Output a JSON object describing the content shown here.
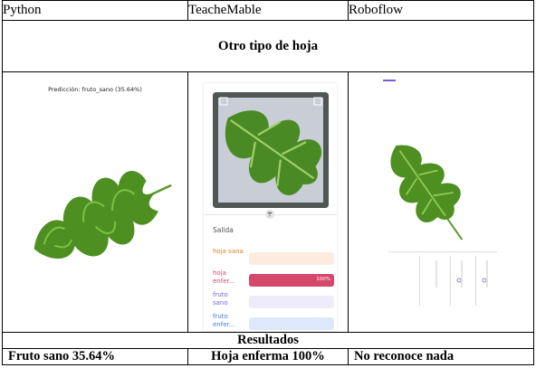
{
  "columns": [
    "Python",
    "TeacheMable",
    "Roboflow"
  ],
  "section_title": "Otro tipo de hoja",
  "python_panel": {
    "prediction_text": "Predicción: fruto_sano (35.64%)"
  },
  "teachable_panel": {
    "output_heading": "Salida",
    "classes": [
      {
        "label": "hoja sana",
        "value": 0,
        "pct_text": "",
        "color": "#d9822b",
        "track": "#fdebe0"
      },
      {
        "label": "hoja enfer...",
        "value": 1.0,
        "pct_text": "100%",
        "color": "#d4496a",
        "track": "#fbe1e7"
      },
      {
        "label": "fruto sano",
        "value": 0,
        "pct_text": "",
        "color": "#7b5fd6",
        "track": "#eeebfb"
      },
      {
        "label": "fruto enfer...",
        "value": 0,
        "pct_text": "",
        "color": "#3f7fd6",
        "track": "#dde9fb"
      }
    ]
  },
  "results_title": "Resultados",
  "results": [
    "Fruto sano 35.64%",
    "Hoja enferma 100%",
    "No reconoce nada"
  ]
}
